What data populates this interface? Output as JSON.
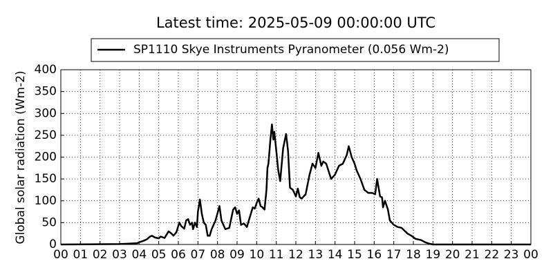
{
  "chart_data": {
    "type": "line",
    "title": "Latest time: 2025-05-09 00:00:00 UTC",
    "ylabel": "Global solar radiation (Wm-2)",
    "legend": "top",
    "grid": true,
    "xlim": [
      0,
      24
    ],
    "ylim": [
      0,
      400
    ],
    "yticks": [
      0,
      50,
      100,
      150,
      200,
      250,
      300,
      350,
      400
    ],
    "xticks": [
      {
        "value": 0,
        "label": "00"
      },
      {
        "value": 1,
        "label": "01"
      },
      {
        "value": 2,
        "label": "02"
      },
      {
        "value": 3,
        "label": "03"
      },
      {
        "value": 4,
        "label": "04"
      },
      {
        "value": 5,
        "label": "05"
      },
      {
        "value": 6,
        "label": "06"
      },
      {
        "value": 7,
        "label": "07"
      },
      {
        "value": 8,
        "label": "08"
      },
      {
        "value": 9,
        "label": "09"
      },
      {
        "value": 10,
        "label": "10"
      },
      {
        "value": 11,
        "label": "11"
      },
      {
        "value": 12,
        "label": "12"
      },
      {
        "value": 13,
        "label": "13"
      },
      {
        "value": 14,
        "label": "14"
      },
      {
        "value": 15,
        "label": "15"
      },
      {
        "value": 16,
        "label": "16"
      },
      {
        "value": 17,
        "label": "17"
      },
      {
        "value": 18,
        "label": "18"
      },
      {
        "value": 19,
        "label": "19"
      },
      {
        "value": 20,
        "label": "20"
      },
      {
        "value": 21,
        "label": "21"
      },
      {
        "value": 22,
        "label": "22"
      },
      {
        "value": 23,
        "label": "23"
      },
      {
        "value": 24,
        "label": "00"
      }
    ],
    "x": [
      0,
      3,
      3.5,
      3.9,
      4,
      4.2,
      4.4,
      4.55,
      4.65,
      4.8,
      5,
      5.1,
      5.3,
      5.5,
      5.65,
      5.75,
      5.9,
      6.05,
      6.15,
      6.3,
      6.4,
      6.5,
      6.6,
      6.7,
      6.75,
      6.85,
      6.95,
      7,
      7.1,
      7.2,
      7.3,
      7.4,
      7.5,
      7.6,
      7.7,
      7.9,
      8.1,
      8.2,
      8.4,
      8.6,
      8.8,
      8.9,
      9,
      9.1,
      9.2,
      9.35,
      9.5,
      9.8,
      9.9,
      10,
      10.1,
      10.2,
      10.3,
      10.4,
      10.5,
      10.55,
      10.6,
      10.7,
      10.78,
      10.85,
      10.9,
      11,
      11.1,
      11.2,
      11.35,
      11.5,
      11.6,
      11.7,
      11.85,
      12,
      12.1,
      12.2,
      12.3,
      12.5,
      12.7,
      12.85,
      13,
      13.15,
      13.3,
      13.4,
      13.55,
      13.8,
      14,
      14.2,
      14.4,
      14.6,
      14.7,
      14.85,
      15,
      15.1,
      15.3,
      15.5,
      15.7,
      15.9,
      16.05,
      16.15,
      16.3,
      16.4,
      16.45,
      16.55,
      16.7,
      16.8,
      17,
      17.2,
      17.4,
      17.7,
      17.9,
      18.1,
      18.4,
      18.6,
      18.8,
      19,
      24
    ],
    "series": [
      {
        "name": "SP1110 Skye Instruments Pyranometer (0.056 Wm-2)",
        "color": "#000000",
        "values": [
          0,
          1,
          2,
          3,
          5,
          8,
          12,
          18,
          20,
          16,
          14,
          18,
          15,
          30,
          25,
          20,
          28,
          50,
          42,
          36,
          55,
          58,
          45,
          50,
          35,
          50,
          40,
          75,
          103,
          70,
          50,
          45,
          20,
          20,
          35,
          55,
          88,
          55,
          35,
          38,
          80,
          85,
          70,
          78,
          45,
          48,
          40,
          85,
          82,
          95,
          105,
          88,
          85,
          80,
          125,
          175,
          185,
          240,
          275,
          240,
          258,
          215,
          170,
          145,
          220,
          253,
          215,
          130,
          125,
          110,
          128,
          108,
          105,
          115,
          160,
          185,
          175,
          210,
          180,
          190,
          185,
          150,
          160,
          180,
          185,
          205,
          225,
          200,
          185,
          170,
          150,
          125,
          118,
          118,
          115,
          150,
          110,
          108,
          85,
          100,
          80,
          55,
          45,
          40,
          38,
          25,
          20,
          13,
          10,
          5,
          2,
          0,
          0
        ]
      }
    ]
  }
}
